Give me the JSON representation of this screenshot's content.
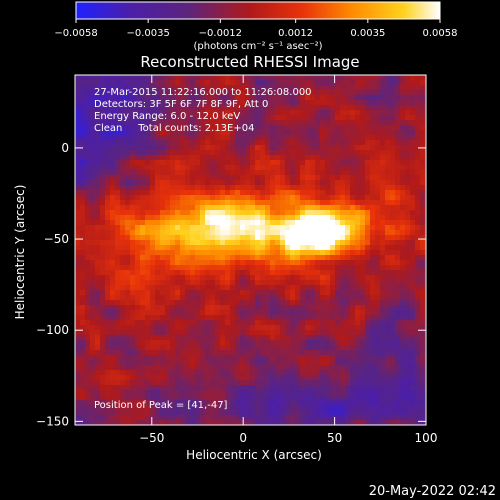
{
  "chart_data": {
    "type": "heatmap",
    "title": "Reconstructed RHESSI Image",
    "xlabel": "Heliocentric X (arcsec)",
    "ylabel": "Heliocentric Y (arcsec)",
    "xlim": [
      -92,
      100
    ],
    "ylim": [
      -152,
      40
    ],
    "x_ticks": [
      -50,
      0,
      50,
      100
    ],
    "y_ticks": [
      0,
      -50,
      -100,
      -150
    ],
    "colorbar": {
      "ticks": [
        "-0.0058",
        "-0.0035",
        "-0.0012",
        "0.0012",
        "0.0035",
        "0.0058"
      ],
      "range": [
        -0.0058,
        0.0058
      ],
      "units": "(photons cm⁻² s⁻¹ asec⁻²)",
      "colormap": [
        "#2020ff",
        "#4b1fa8",
        "#5a2480",
        "#b01a1a",
        "#e8320a",
        "#ff8c00",
        "#ffd21e",
        "#ffffff"
      ]
    },
    "annotations": [
      "27-Mar-2015 11:22:16.000 to 11:26:08.000",
      "Detectors: 3F 5F 6F 7F 8F 9F, Att 0",
      "Energy Range: 6.0 - 12.0 keV",
      "Clean     Total counts: 2.13E+04"
    ],
    "peak_label": "Position of Peak = [41,-47]",
    "peak": [
      41,
      -47
    ]
  },
  "footer_date": "20-May-2022 02:42"
}
